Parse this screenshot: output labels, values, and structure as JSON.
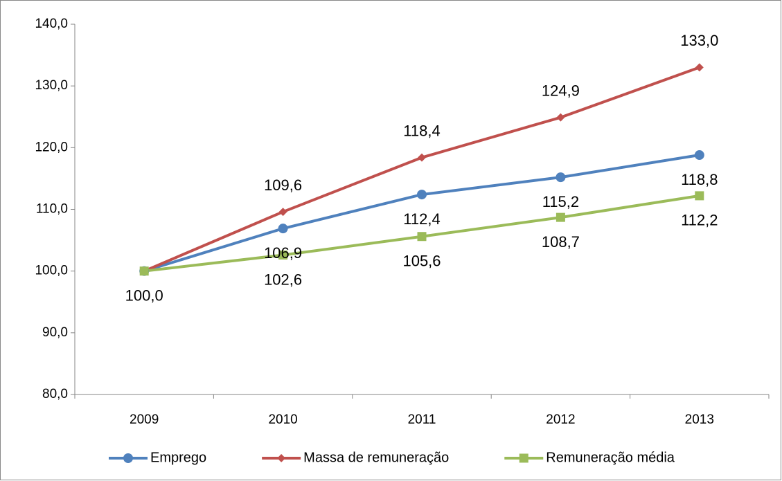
{
  "chart_data": {
    "type": "line",
    "categories": [
      "2009",
      "2010",
      "2011",
      "2012",
      "2013"
    ],
    "series": [
      {
        "name": "Emprego",
        "color": "#4f81bd",
        "marker": "circle",
        "label_position": "below",
        "values": [
          100.0,
          106.9,
          112.4,
          115.2,
          118.8
        ],
        "value_labels": [
          "100,0",
          "106,9",
          "112,4",
          "115,2",
          "118,8"
        ]
      },
      {
        "name": "Massa de remuneração",
        "color": "#c0504d",
        "marker": "diamond",
        "label_position": "above",
        "values": [
          100.0,
          109.6,
          118.4,
          124.9,
          133.0
        ],
        "value_labels": [
          null,
          "109,6",
          "118,4",
          "124,9",
          "133,0"
        ]
      },
      {
        "name": "Remuneração média",
        "color": "#9bbb59",
        "marker": "square",
        "label_position": "below",
        "values": [
          100.0,
          102.6,
          105.6,
          108.7,
          112.2
        ],
        "value_labels": [
          null,
          "102,6",
          "105,6",
          "108,7",
          "112,2"
        ]
      }
    ],
    "ylim": [
      80,
      140
    ],
    "yticks": [
      {
        "value": 80,
        "label": "80,0"
      },
      {
        "value": 90,
        "label": "90,0"
      },
      {
        "value": 100,
        "label": "100,0"
      },
      {
        "value": 110,
        "label": "110,0"
      },
      {
        "value": 120,
        "label": "120,0"
      },
      {
        "value": 130,
        "label": "130,0"
      },
      {
        "value": 140,
        "label": "140,0"
      }
    ],
    "grid": false,
    "legend": "bottom"
  }
}
